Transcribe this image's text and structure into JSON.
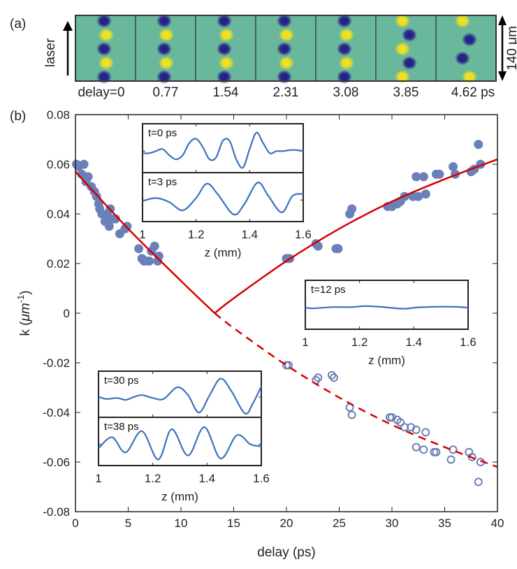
{
  "panel_a": {
    "label": "(a)",
    "side_label": "laser",
    "scale_label": "140 μm",
    "delay_labels": [
      "delay=0",
      "0.77",
      "1.54",
      "2.31",
      "3.08",
      "3.85",
      "4.62 ps"
    ]
  },
  "colors": {
    "points": "#6a80b8",
    "fit": "#d40000",
    "inset_line": "#3a72c0",
    "map_bg": "#6ab89b",
    "map_blue": "#241a86",
    "map_yellow": "#f6e21a"
  },
  "chart_data": {
    "type": "scatter",
    "panel_label": "(b)",
    "xlabel": "delay (ps)",
    "ylabel_main": "k (",
    "ylabel_unit": "μm",
    "ylabel_exp": "-1",
    "ylabel_close": ")",
    "xlim": [
      0,
      40
    ],
    "ylim": [
      -0.08,
      0.08
    ],
    "xticks": [
      "0",
      "5",
      "10",
      "15",
      "20",
      "25",
      "30",
      "35",
      "40"
    ],
    "yticks": [
      "0.08",
      "0.06",
      "0.04",
      "0.02",
      "0",
      "-0.02",
      "-0.04",
      "-0.06",
      "-0.08"
    ],
    "filled_points": [
      [
        0.1,
        0.06
      ],
      [
        0.3,
        0.059
      ],
      [
        0.8,
        0.06
      ],
      [
        0.6,
        0.056
      ],
      [
        1.2,
        0.055
      ],
      [
        1.0,
        0.053
      ],
      [
        1.5,
        0.051
      ],
      [
        1.8,
        0.049
      ],
      [
        2.0,
        0.047
      ],
      [
        2.2,
        0.044
      ],
      [
        2.3,
        0.042
      ],
      [
        2.5,
        0.04
      ],
      [
        3.0,
        0.04
      ],
      [
        2.8,
        0.037
      ],
      [
        3.3,
        0.042
      ],
      [
        3.5,
        0.038
      ],
      [
        3.8,
        0.038
      ],
      [
        3.2,
        0.035
      ],
      [
        4.2,
        0.032
      ],
      [
        4.7,
        0.034
      ],
      [
        4.9,
        0.035
      ],
      [
        6.0,
        0.026
      ],
      [
        6.3,
        0.022
      ],
      [
        6.5,
        0.021
      ],
      [
        6.7,
        0.021
      ],
      [
        7.0,
        0.021
      ],
      [
        7.2,
        0.025
      ],
      [
        7.5,
        0.027
      ],
      [
        7.8,
        0.021
      ],
      [
        7.9,
        0.023
      ],
      [
        20.0,
        0.022
      ],
      [
        20.3,
        0.022
      ],
      [
        22.8,
        0.028
      ],
      [
        23.0,
        0.027
      ],
      [
        24.7,
        0.026
      ],
      [
        24.9,
        0.026
      ],
      [
        26.0,
        0.04
      ],
      [
        26.2,
        0.042
      ],
      [
        29.6,
        0.043
      ],
      [
        30.0,
        0.043
      ],
      [
        30.5,
        0.044
      ],
      [
        30.8,
        0.045
      ],
      [
        31.2,
        0.047
      ],
      [
        32.0,
        0.047
      ],
      [
        32.5,
        0.047
      ],
      [
        32.3,
        0.055
      ],
      [
        33.0,
        0.055
      ],
      [
        33.2,
        0.048
      ],
      [
        34.2,
        0.056
      ],
      [
        34.5,
        0.056
      ],
      [
        35.8,
        0.059
      ],
      [
        36.0,
        0.056
      ],
      [
        37.5,
        0.057
      ],
      [
        37.8,
        0.058
      ],
      [
        38.2,
        0.068
      ],
      [
        38.4,
        0.06
      ]
    ],
    "open_points": [
      [
        20.0,
        -0.021
      ],
      [
        20.2,
        -0.021
      ],
      [
        22.8,
        -0.027
      ],
      [
        23.0,
        -0.026
      ],
      [
        24.3,
        -0.025
      ],
      [
        24.5,
        -0.026
      ],
      [
        26.0,
        -0.038
      ],
      [
        26.2,
        -0.041
      ],
      [
        29.8,
        -0.042
      ],
      [
        30.0,
        -0.042
      ],
      [
        30.5,
        -0.043
      ],
      [
        30.8,
        -0.044
      ],
      [
        31.2,
        -0.046
      ],
      [
        31.8,
        -0.046
      ],
      [
        32.3,
        -0.047
      ],
      [
        33.2,
        -0.048
      ],
      [
        32.3,
        -0.054
      ],
      [
        33.0,
        -0.055
      ],
      [
        34.0,
        -0.056
      ],
      [
        34.2,
        -0.056
      ],
      [
        35.6,
        -0.059
      ],
      [
        35.8,
        -0.055
      ],
      [
        37.3,
        -0.056
      ],
      [
        37.6,
        -0.058
      ],
      [
        38.4,
        -0.06
      ],
      [
        38.2,
        -0.068
      ]
    ],
    "fit_solid": [
      [
        0,
        0.057
      ],
      [
        5,
        0.034
      ],
      [
        10,
        0.013
      ],
      [
        13.2,
        0
      ],
      [
        15,
        0.006
      ],
      [
        20,
        0.021
      ],
      [
        25,
        0.034
      ],
      [
        30,
        0.045
      ],
      [
        35,
        0.054
      ],
      [
        40,
        0.062
      ]
    ],
    "fit_dashed": [
      [
        13.2,
        0
      ],
      [
        15,
        -0.006
      ],
      [
        20,
        -0.021
      ],
      [
        25,
        -0.034
      ],
      [
        30,
        -0.045
      ],
      [
        35,
        -0.054
      ],
      [
        40,
        -0.062
      ]
    ],
    "insets": [
      {
        "label": "t=0 ps",
        "xlabel": "z (mm)",
        "xticks": [
          "1",
          "1.2",
          "1.4",
          "1.6"
        ],
        "z": [
          1.0,
          1.025,
          1.05,
          1.075,
          1.1,
          1.125,
          1.15,
          1.175,
          1.2,
          1.225,
          1.25,
          1.275,
          1.3,
          1.325,
          1.35,
          1.375,
          1.4,
          1.425,
          1.45,
          1.475,
          1.5,
          1.525,
          1.55,
          1.575,
          1.6
        ],
        "y": [
          -0.1,
          -0.1,
          0.0,
          0.1,
          -0.2,
          -0.4,
          -0.2,
          0.4,
          0.6,
          0.2,
          -0.4,
          -0.3,
          0.5,
          0.5,
          -0.4,
          -0.8,
          0.1,
          0.9,
          0.4,
          -0.1,
          0.0,
          0.0,
          0.05,
          0.05,
          0.0
        ]
      },
      {
        "label": "t=3 ps",
        "z": [
          1.0,
          1.05,
          1.1,
          1.15,
          1.2,
          1.24,
          1.28,
          1.34,
          1.38,
          1.43,
          1.47,
          1.52,
          1.56,
          1.6
        ],
        "y": [
          -0.05,
          0.1,
          -0.1,
          -0.5,
          0.1,
          0.8,
          0.3,
          -0.7,
          -0.2,
          0.85,
          0.2,
          -0.6,
          0.2,
          0.3
        ]
      },
      {
        "label": "t=12 ps",
        "xlabel": "z (mm)",
        "xticks": [
          "1",
          "1.2",
          "1.4",
          "1.6"
        ],
        "z": [
          1.0,
          1.03,
          1.1,
          1.17,
          1.22,
          1.28,
          1.36,
          1.42,
          1.5,
          1.56,
          1.6
        ],
        "y": [
          0.0,
          -0.03,
          0.03,
          0.03,
          0.08,
          0.04,
          -0.05,
          0.02,
          0.05,
          0.04,
          0.0
        ]
      },
      {
        "label": "t=30 ps",
        "z": [
          1.0,
          1.03,
          1.07,
          1.1,
          1.13,
          1.16,
          1.2,
          1.24,
          1.29,
          1.33,
          1.37,
          1.41,
          1.45,
          1.49,
          1.54,
          1.57,
          1.6
        ],
        "y": [
          0.0,
          -0.1,
          -0.05,
          -0.15,
          0.0,
          0.1,
          -0.05,
          -0.1,
          0.5,
          0.1,
          -0.8,
          0.1,
          0.95,
          0.3,
          -0.85,
          -0.3,
          0.55
        ]
      },
      {
        "label": "t=38 ps",
        "xlabel": "z (mm)",
        "xticks": [
          "1",
          "1.2",
          "1.4",
          "1.6"
        ],
        "z": [
          1.0,
          1.05,
          1.1,
          1.16,
          1.22,
          1.27,
          1.33,
          1.39,
          1.45,
          1.51,
          1.56,
          1.6
        ],
        "y": [
          -0.2,
          0.35,
          -0.4,
          0.65,
          -0.75,
          0.75,
          -0.55,
          0.85,
          -0.7,
          0.45,
          0.0,
          -0.1
        ]
      }
    ]
  }
}
